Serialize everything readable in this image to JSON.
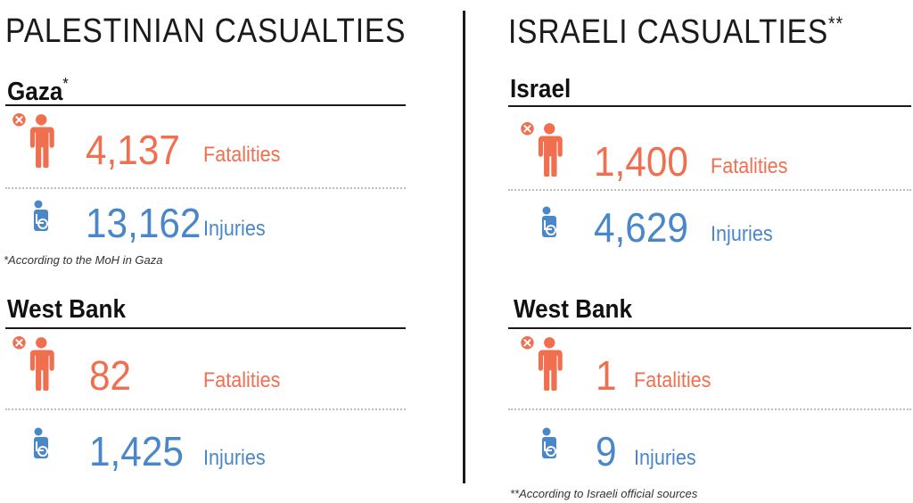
{
  "colors": {
    "fatal": "#ef6f4f",
    "injury": "#4a87c9",
    "text": "#1a1a1a"
  },
  "palestinian": {
    "title": "PALESTINIAN CASUALTIES",
    "gaza": {
      "region": "Gaza",
      "region_mark": "*",
      "fatalities": "4,137",
      "fatalities_label": "Fatalities",
      "injuries": "13,162",
      "injuries_label": "Injuries",
      "note": "*According to the MoH in Gaza"
    },
    "west_bank": {
      "region": "West Bank",
      "fatalities": "82",
      "fatalities_label": "Fatalities",
      "injuries": "1,425",
      "injuries_label": "Injuries"
    }
  },
  "israeli": {
    "title": "ISRAELI CASUALTIES",
    "title_mark": "**",
    "israel": {
      "region": "Israel",
      "fatalities": "1,400",
      "fatalities_label": "Fatalities",
      "injuries": "4,629",
      "injuries_label": "Injuries"
    },
    "west_bank": {
      "region": "West Bank",
      "fatalities": "1",
      "fatalities_label": "Fatalities",
      "injuries": "9",
      "injuries_label": "Injuries"
    },
    "note": "**According to Israeli official sources"
  },
  "icons": {
    "fatality": "person-x-icon",
    "injury": "person-wheelchair-icon"
  }
}
